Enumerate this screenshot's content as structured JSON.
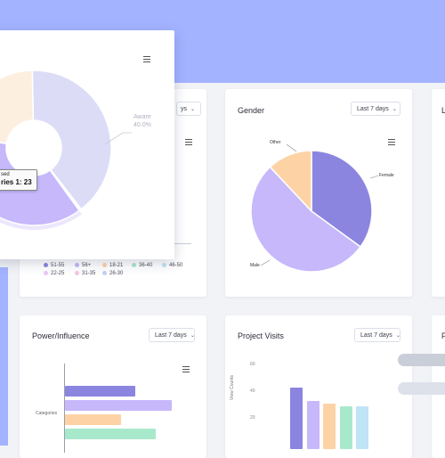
{
  "colors": {
    "hero": "#a3b3ff",
    "violet": "#8b85e0",
    "lavender": "#c6b8fb",
    "peach": "#fdd3a6",
    "mint": "#a8e9cc",
    "sky": "#bfe4f5",
    "pink": "#f6c6de",
    "cream": "#fdefe0",
    "periwinkle": "#dcdcf7"
  },
  "popup": {
    "slice_label": "Aware",
    "slice_pct": "40.0%",
    "tooltip_line1": "sed",
    "tooltip_line2": "ries 1: 23"
  },
  "age_card": {
    "dropdown_fragment": "ys",
    "legend": [
      {
        "label": "51-55",
        "color": "#8b85e0"
      },
      {
        "label": "56+",
        "color": "#c6b8fb"
      },
      {
        "label": "18-21",
        "color": "#fdd3a6"
      },
      {
        "label": "36-40",
        "color": "#a8e9cc"
      },
      {
        "label": "46-50",
        "color": "#bfe4f5"
      },
      {
        "label": "22-25",
        "color": "#e9c8f2"
      },
      {
        "label": "31-35",
        "color": "#f6c6de"
      },
      {
        "label": "26-30",
        "color": "#c3d2f5"
      }
    ]
  },
  "gender_card": {
    "title": "Gender",
    "dropdown": "Last 7 days",
    "labels": {
      "other": "Other",
      "female": "Female",
      "male": "Male"
    }
  },
  "third_card": {
    "title_fragment": "L"
  },
  "power_card": {
    "title": "Power/Influence",
    "dropdown": "Last 7 days",
    "y_label": "Categories"
  },
  "visits_card": {
    "title": "Project Visits",
    "dropdown": "Last 7 days",
    "y_label": "View Counts",
    "ticks": [
      "60",
      "40",
      "20"
    ]
  },
  "right_card": {
    "title_fragment": "P"
  },
  "chart_data": [
    {
      "type": "pie",
      "title": "",
      "labels": [
        "Aware"
      ],
      "values": [
        40.0
      ],
      "note": "doughnut; tooltip shows a value of 23 for series 1"
    },
    {
      "type": "pie",
      "title": "Gender",
      "labels": [
        "Female",
        "Male",
        "Other"
      ],
      "values": [
        35,
        53,
        12
      ]
    },
    {
      "type": "bar",
      "orientation": "horizontal",
      "title": "Power/Influence",
      "ylabel": "Categories",
      "values": [
        48,
        73,
        38,
        62
      ]
    },
    {
      "type": "bar",
      "title": "Project Visits",
      "ylabel": "View Counts",
      "ylim": [
        0,
        60
      ],
      "values": [
        46,
        36,
        34,
        32,
        32
      ]
    }
  ]
}
